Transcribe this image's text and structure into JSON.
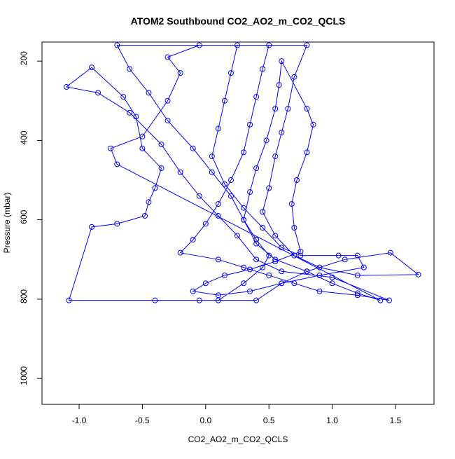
{
  "chart_data": {
    "type": "scatter",
    "title": "ATOM2 Southbound CO2_AO2_m_CO2_QCLS",
    "xlabel": "CO2_AO2_m_CO2_QCLS",
    "ylabel": "Pressure (mbar)",
    "color": "#0000ff",
    "connect": true,
    "xlim": [
      -1.293,
      1.804
    ],
    "ylim": [
      1065,
      152
    ],
    "xticks": [
      {
        "value": -1.0,
        "label": "-1.0"
      },
      -0.5,
      {
        "value": 0.0,
        "label": "0.0"
      },
      0.5,
      {
        "value": 1.0,
        "label": "1.0"
      },
      1.5
    ],
    "yticks": [
      200,
      400,
      600,
      800,
      1000
    ],
    "x": [
      0.1,
      0.3,
      0.45,
      0.5,
      0.4,
      0.3,
      0.2,
      0.05,
      -0.1,
      -0.3,
      -0.45,
      -0.6,
      -0.7,
      0.8,
      0.7,
      0.65,
      0.6,
      0.55,
      0.5,
      0.45,
      0.55,
      0.7,
      0.9,
      1.2,
      1.68,
      1.46,
      1.1,
      0.8,
      0.6,
      0.4,
      -0.05,
      -0.4,
      -1.08,
      -0.9,
      -0.7,
      -0.48,
      -0.45,
      -0.4,
      -0.35,
      -0.5,
      -0.55,
      -0.65,
      -0.9,
      -1.1,
      -0.85,
      -0.6,
      -0.35,
      -0.2,
      -0.05,
      0.1,
      0.25,
      0.4,
      0.6,
      1.0,
      1.45,
      1.2,
      0.9,
      0.7,
      0.5,
      0.3,
      0.1,
      -0.2,
      -0.1,
      0.0,
      0.1,
      0.2,
      0.3,
      0.35,
      0.4,
      0.45,
      0.5,
      0.25,
      0.2,
      0.15,
      0.1,
      0.05,
      0.15,
      0.3,
      0.45,
      0.6,
      0.75,
      1.05,
      1.2,
      1.25,
      0.9,
      0.6,
      0.35,
      0.1,
      -0.1,
      0.0,
      0.15,
      0.35,
      0.55,
      0.75,
      0.7,
      0.68,
      0.72,
      0.8,
      0.85,
      0.8,
      0.6,
      0.58,
      0.55,
      0.48,
      0.4,
      0.35,
      0.3,
      0.4,
      0.55,
      0.8,
      1.0,
      1.2,
      1.38,
      -0.7,
      -0.75,
      -0.5,
      -0.3,
      -0.2,
      -0.3,
      -0.05
    ],
    "y": [
      803,
      760,
      720,
      690,
      650,
      600,
      540,
      480,
      420,
      350,
      280,
      220,
      160,
      160,
      240,
      320,
      380,
      440,
      520,
      580,
      640,
      690,
      720,
      740,
      738,
      683,
      700,
      730,
      760,
      803,
      803,
      803,
      803,
      618,
      610,
      590,
      555,
      520,
      470,
      420,
      340,
      290,
      216,
      265,
      280,
      330,
      410,
      480,
      540,
      590,
      640,
      700,
      730,
      745,
      803,
      790,
      780,
      760,
      740,
      720,
      700,
      683,
      650,
      610,
      560,
      500,
      430,
      360,
      290,
      220,
      160,
      160,
      230,
      300,
      370,
      440,
      510,
      570,
      620,
      670,
      690,
      690,
      690,
      720,
      740,
      760,
      780,
      790,
      780,
      760,
      740,
      725,
      705,
      680,
      620,
      560,
      500,
      430,
      360,
      320,
      200,
      260,
      320,
      400,
      470,
      530,
      600,
      660,
      700,
      730,
      760,
      785,
      803,
      460,
      420,
      390,
      300,
      230,
      190,
      160
    ]
  }
}
